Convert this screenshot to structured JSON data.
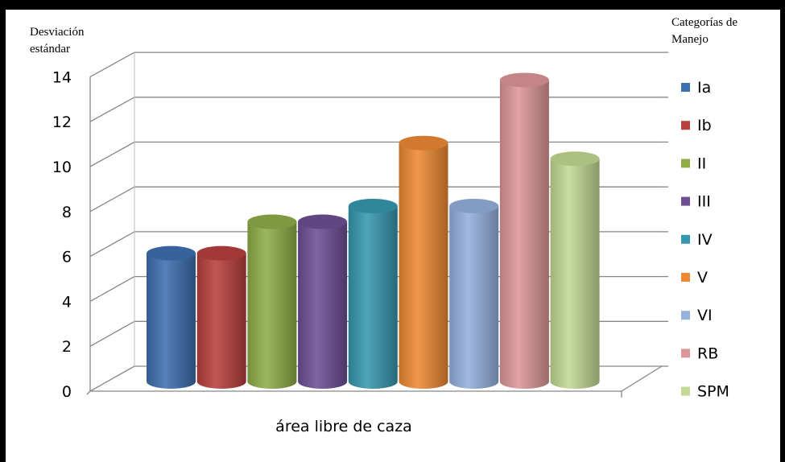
{
  "chart_data": {
    "type": "bar",
    "title": "",
    "ylabel": "Desviación estándar",
    "xlabel": "área libre de caza",
    "legend_title": "Categorías de Manejo",
    "legend_position": "right",
    "grid": true,
    "ylim": [
      0,
      14
    ],
    "yticks": [
      "0",
      "2",
      "4",
      "6",
      "8",
      "10",
      "12",
      "14"
    ],
    "categories": [
      "área libre de caza"
    ],
    "series": [
      {
        "name": "Ia",
        "values": [
          5.7
        ],
        "color": "#3E6FB0"
      },
      {
        "name": "Ib",
        "values": [
          5.7
        ],
        "color": "#B8403E"
      },
      {
        "name": "II",
        "values": [
          7.1
        ],
        "color": "#8FAE48"
      },
      {
        "name": "III",
        "values": [
          7.1
        ],
        "color": "#6E4F96"
      },
      {
        "name": "IV",
        "values": [
          7.8
        ],
        "color": "#3698B0"
      },
      {
        "name": "V",
        "values": [
          10.6
        ],
        "color": "#EE8A34"
      },
      {
        "name": "VI",
        "values": [
          7.8
        ],
        "color": "#95B1DE"
      },
      {
        "name": "RB",
        "values": [
          13.4
        ],
        "color": "#DE9798"
      },
      {
        "name": "SPM",
        "values": [
          9.9
        ],
        "color": "#C3DA94"
      }
    ]
  }
}
